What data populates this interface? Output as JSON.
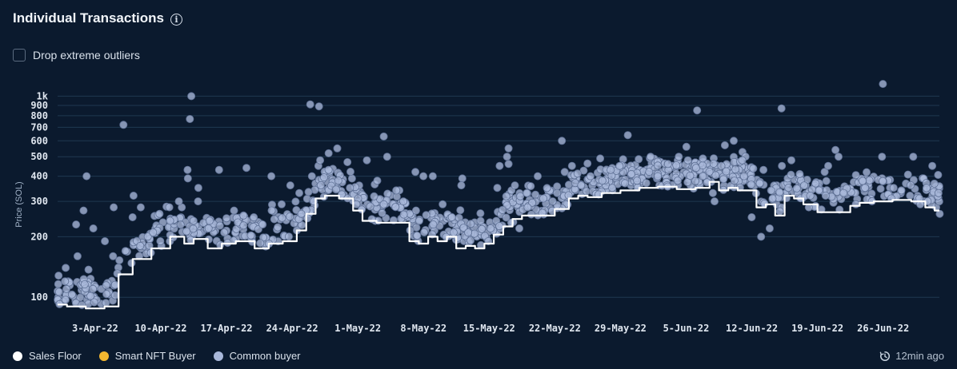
{
  "header": {
    "title": "Individual Transactions"
  },
  "controls": {
    "drop_outliers_label": "Drop extreme outliers",
    "drop_outliers_checked": false
  },
  "legend": [
    {
      "label": "Sales Floor",
      "color": "#ffffff"
    },
    {
      "label": "Smart NFT Buyer",
      "color": "#f2b630"
    },
    {
      "label": "Common buyer",
      "color": "#a9b8da"
    }
  ],
  "footer": {
    "updated_text": "12min ago"
  },
  "colors": {
    "background": "#0b1a2e",
    "grid": "#1f3850",
    "point_fill": "#a9b8da",
    "point_stroke": "#5d6f93",
    "floor_line": "#ffffff"
  },
  "chart_data": {
    "type": "scatter",
    "ylabel": "Price (SOL)",
    "y_scale": "log",
    "ylim": [
      85,
      1100
    ],
    "y_ticks": [
      {
        "value": 100,
        "label": "100"
      },
      {
        "value": 200,
        "label": "200"
      },
      {
        "value": 300,
        "label": "300"
      },
      {
        "value": 400,
        "label": "400"
      },
      {
        "value": 500,
        "label": "500"
      },
      {
        "value": 600,
        "label": "600"
      },
      {
        "value": 700,
        "label": "700"
      },
      {
        "value": 800,
        "label": "800"
      },
      {
        "value": 900,
        "label": "900"
      },
      {
        "value": 1000,
        "label": "1k"
      }
    ],
    "xlim": [
      "2022-03-30",
      "2022-07-02"
    ],
    "x_ticks": [
      {
        "value": "2022-04-03",
        "label": "3-Apr-22"
      },
      {
        "value": "2022-04-10",
        "label": "10-Apr-22"
      },
      {
        "value": "2022-04-17",
        "label": "17-Apr-22"
      },
      {
        "value": "2022-04-24",
        "label": "24-Apr-22"
      },
      {
        "value": "2022-05-01",
        "label": "1-May-22"
      },
      {
        "value": "2022-05-08",
        "label": "8-May-22"
      },
      {
        "value": "2022-05-15",
        "label": "15-May-22"
      },
      {
        "value": "2022-05-22",
        "label": "22-May-22"
      },
      {
        "value": "2022-05-29",
        "label": "29-May-22"
      },
      {
        "value": "2022-06-05",
        "label": "5-Jun-22"
      },
      {
        "value": "2022-06-12",
        "label": "12-Jun-22"
      },
      {
        "value": "2022-06-19",
        "label": "19-Jun-22"
      },
      {
        "value": "2022-06-26",
        "label": "26-Jun-22"
      }
    ],
    "series": [
      {
        "name": "Sales Floor",
        "type": "line",
        "points": [
          [
            "2022-03-30",
            92
          ],
          [
            "2022-04-01",
            90
          ],
          [
            "2022-04-03",
            88
          ],
          [
            "2022-04-05",
            90
          ],
          [
            "2022-04-06",
            130
          ],
          [
            "2022-04-08",
            155
          ],
          [
            "2022-04-10",
            175
          ],
          [
            "2022-04-12",
            200
          ],
          [
            "2022-04-13",
            185
          ],
          [
            "2022-04-14",
            195
          ],
          [
            "2022-04-16",
            175
          ],
          [
            "2022-04-17",
            185
          ],
          [
            "2022-04-19",
            190
          ],
          [
            "2022-04-21",
            175
          ],
          [
            "2022-04-22",
            185
          ],
          [
            "2022-04-24",
            190
          ],
          [
            "2022-04-25",
            215
          ],
          [
            "2022-04-26",
            260
          ],
          [
            "2022-04-27",
            310
          ],
          [
            "2022-04-28",
            320
          ],
          [
            "2022-04-30",
            310
          ],
          [
            "2022-05-01",
            270
          ],
          [
            "2022-05-02",
            240
          ],
          [
            "2022-05-04",
            235
          ],
          [
            "2022-05-06",
            235
          ],
          [
            "2022-05-07",
            190
          ],
          [
            "2022-05-08",
            185
          ],
          [
            "2022-05-09",
            200
          ],
          [
            "2022-05-10",
            190
          ],
          [
            "2022-05-11",
            200
          ],
          [
            "2022-05-12",
            175
          ],
          [
            "2022-05-13",
            180
          ],
          [
            "2022-05-14",
            175
          ],
          [
            "2022-05-15",
            185
          ],
          [
            "2022-05-16",
            205
          ],
          [
            "2022-05-17",
            225
          ],
          [
            "2022-05-18",
            245
          ],
          [
            "2022-05-19",
            255
          ],
          [
            "2022-05-21",
            255
          ],
          [
            "2022-05-23",
            275
          ],
          [
            "2022-05-24",
            310
          ],
          [
            "2022-05-25",
            320
          ],
          [
            "2022-05-26",
            315
          ],
          [
            "2022-05-28",
            330
          ],
          [
            "2022-05-30",
            340
          ],
          [
            "2022-06-01",
            350
          ],
          [
            "2022-06-03",
            355
          ],
          [
            "2022-06-05",
            345
          ],
          [
            "2022-06-07",
            350
          ],
          [
            "2022-06-08",
            375
          ],
          [
            "2022-06-09",
            340
          ],
          [
            "2022-06-10",
            350
          ],
          [
            "2022-06-11",
            340
          ],
          [
            "2022-06-12",
            340
          ],
          [
            "2022-06-13",
            280
          ],
          [
            "2022-06-14",
            290
          ],
          [
            "2022-06-15",
            255
          ],
          [
            "2022-06-16",
            320
          ],
          [
            "2022-06-17",
            310
          ],
          [
            "2022-06-18",
            290
          ],
          [
            "2022-06-20",
            265
          ],
          [
            "2022-06-22",
            265
          ],
          [
            "2022-06-23",
            285
          ],
          [
            "2022-06-24",
            295
          ],
          [
            "2022-06-26",
            300
          ],
          [
            "2022-06-28",
            305
          ],
          [
            "2022-06-30",
            300
          ],
          [
            "2022-07-01",
            280
          ],
          [
            "2022-07-02",
            270
          ]
        ]
      },
      {
        "name": "Smart NFT Buyer",
        "type": "scatter",
        "points": []
      },
      {
        "name": "Common buyer",
        "type": "scatter",
        "points": [
          [
            "2022-03-31",
            120
          ],
          [
            "2022-03-31",
            140
          ],
          [
            "2022-04-01",
            160
          ],
          [
            "2022-04-01",
            230
          ],
          [
            "2022-04-02",
            270
          ],
          [
            "2022-04-02",
            400
          ],
          [
            "2022-04-03",
            110
          ],
          [
            "2022-04-03",
            220
          ],
          [
            "2022-04-04",
            190
          ],
          [
            "2022-04-05",
            280
          ],
          [
            "2022-04-05",
            160
          ],
          [
            "2022-04-06",
            720
          ],
          [
            "2022-04-06",
            170
          ],
          [
            "2022-04-07",
            250
          ],
          [
            "2022-04-07",
            320
          ],
          [
            "2022-04-08",
            280
          ],
          [
            "2022-04-08",
            180
          ],
          [
            "2022-04-09",
            210
          ],
          [
            "2022-04-10",
            260
          ],
          [
            "2022-04-10",
            190
          ],
          [
            "2022-04-11",
            240
          ],
          [
            "2022-04-12",
            280
          ],
          [
            "2022-04-12",
            300
          ],
          [
            "2022-04-13",
            1000
          ],
          [
            "2022-04-13",
            770
          ],
          [
            "2022-04-13",
            430
          ],
          [
            "2022-04-13",
            390
          ],
          [
            "2022-04-14",
            350
          ],
          [
            "2022-04-14",
            300
          ],
          [
            "2022-04-15",
            240
          ],
          [
            "2022-04-15",
            220
          ],
          [
            "2022-04-16",
            430
          ],
          [
            "2022-04-17",
            210
          ],
          [
            "2022-04-18",
            270
          ],
          [
            "2022-04-19",
            440
          ],
          [
            "2022-04-20",
            250
          ],
          [
            "2022-04-21",
            230
          ],
          [
            "2022-04-22",
            270
          ],
          [
            "2022-04-22",
            400
          ],
          [
            "2022-04-23",
            290
          ],
          [
            "2022-04-24",
            360
          ],
          [
            "2022-04-25",
            330
          ],
          [
            "2022-04-25",
            260
          ],
          [
            "2022-04-26",
            910
          ],
          [
            "2022-04-26",
            400
          ],
          [
            "2022-04-27",
            890
          ],
          [
            "2022-04-27",
            450
          ],
          [
            "2022-04-27",
            480
          ],
          [
            "2022-04-28",
            520
          ],
          [
            "2022-04-28",
            430
          ],
          [
            "2022-04-29",
            550
          ],
          [
            "2022-04-29",
            380
          ],
          [
            "2022-04-30",
            470
          ],
          [
            "2022-04-30",
            350
          ],
          [
            "2022-05-01",
            310
          ],
          [
            "2022-05-01",
            290
          ],
          [
            "2022-05-02",
            480
          ],
          [
            "2022-05-03",
            380
          ],
          [
            "2022-05-04",
            630
          ],
          [
            "2022-05-04",
            500
          ],
          [
            "2022-05-04",
            290
          ],
          [
            "2022-05-05",
            340
          ],
          [
            "2022-05-06",
            300
          ],
          [
            "2022-05-07",
            420
          ],
          [
            "2022-05-07",
            270
          ],
          [
            "2022-05-08",
            400
          ],
          [
            "2022-05-09",
            400
          ],
          [
            "2022-05-09",
            230
          ],
          [
            "2022-05-10",
            290
          ],
          [
            "2022-05-11",
            250
          ],
          [
            "2022-05-11",
            210
          ],
          [
            "2022-05-12",
            390
          ],
          [
            "2022-05-12",
            360
          ],
          [
            "2022-05-13",
            210
          ],
          [
            "2022-05-14",
            240
          ],
          [
            "2022-05-15",
            190
          ],
          [
            "2022-05-15",
            220
          ],
          [
            "2022-05-16",
            450
          ],
          [
            "2022-05-16",
            350
          ],
          [
            "2022-05-17",
            550
          ],
          [
            "2022-05-17",
            500
          ],
          [
            "2022-05-17",
            460
          ],
          [
            "2022-05-18",
            360
          ],
          [
            "2022-05-18",
            220
          ],
          [
            "2022-05-19",
            330
          ],
          [
            "2022-05-19",
            280
          ],
          [
            "2022-05-20",
            400
          ],
          [
            "2022-05-21",
            310
          ],
          [
            "2022-05-22",
            330
          ],
          [
            "2022-05-22",
            300
          ],
          [
            "2022-05-23",
            600
          ],
          [
            "2022-05-23",
            420
          ],
          [
            "2022-05-24",
            370
          ],
          [
            "2022-05-24",
            450
          ],
          [
            "2022-05-25",
            360
          ],
          [
            "2022-05-26",
            400
          ],
          [
            "2022-05-27",
            490
          ],
          [
            "2022-05-27",
            380
          ],
          [
            "2022-05-28",
            350
          ],
          [
            "2022-05-28",
            430
          ],
          [
            "2022-05-29",
            450
          ],
          [
            "2022-05-30",
            640
          ],
          [
            "2022-05-30",
            410
          ],
          [
            "2022-05-31",
            380
          ],
          [
            "2022-06-01",
            500
          ],
          [
            "2022-06-01",
            370
          ],
          [
            "2022-06-02",
            400
          ],
          [
            "2022-06-03",
            430
          ],
          [
            "2022-06-03",
            460
          ],
          [
            "2022-06-04",
            500
          ],
          [
            "2022-06-04",
            380
          ],
          [
            "2022-06-05",
            560
          ],
          [
            "2022-06-05",
            480
          ],
          [
            "2022-06-06",
            850
          ],
          [
            "2022-06-06",
            440
          ],
          [
            "2022-06-07",
            490
          ],
          [
            "2022-06-07",
            400
          ],
          [
            "2022-06-08",
            330
          ],
          [
            "2022-06-08",
            300
          ],
          [
            "2022-06-09",
            570
          ],
          [
            "2022-06-09",
            450
          ],
          [
            "2022-06-10",
            600
          ],
          [
            "2022-06-10",
            380
          ],
          [
            "2022-06-11",
            480
          ],
          [
            "2022-06-11",
            400
          ],
          [
            "2022-06-12",
            250
          ],
          [
            "2022-06-13",
            430
          ],
          [
            "2022-06-13",
            200
          ],
          [
            "2022-06-14",
            220
          ],
          [
            "2022-06-14",
            310
          ],
          [
            "2022-06-15",
            870
          ],
          [
            "2022-06-15",
            450
          ],
          [
            "2022-06-16",
            480
          ],
          [
            "2022-06-16",
            350
          ],
          [
            "2022-06-17",
            410
          ],
          [
            "2022-06-18",
            320
          ],
          [
            "2022-06-18",
            280
          ],
          [
            "2022-06-19",
            340
          ],
          [
            "2022-06-20",
            450
          ],
          [
            "2022-06-20",
            320
          ],
          [
            "2022-06-21",
            540
          ],
          [
            "2022-06-21",
            500
          ],
          [
            "2022-06-22",
            330
          ],
          [
            "2022-06-23",
            290
          ],
          [
            "2022-06-24",
            350
          ],
          [
            "2022-06-25",
            300
          ],
          [
            "2022-06-26",
            1150
          ],
          [
            "2022-06-26",
            500
          ],
          [
            "2022-06-27",
            350
          ],
          [
            "2022-06-27",
            310
          ],
          [
            "2022-06-28",
            340
          ],
          [
            "2022-06-29",
            500
          ],
          [
            "2022-06-29",
            320
          ],
          [
            "2022-06-30",
            290
          ],
          [
            "2022-06-30",
            310
          ],
          [
            "2022-07-01",
            450
          ],
          [
            "2022-07-01",
            300
          ],
          [
            "2022-07-02",
            330
          ],
          [
            "2022-07-02",
            260
          ]
        ]
      }
    ]
  }
}
